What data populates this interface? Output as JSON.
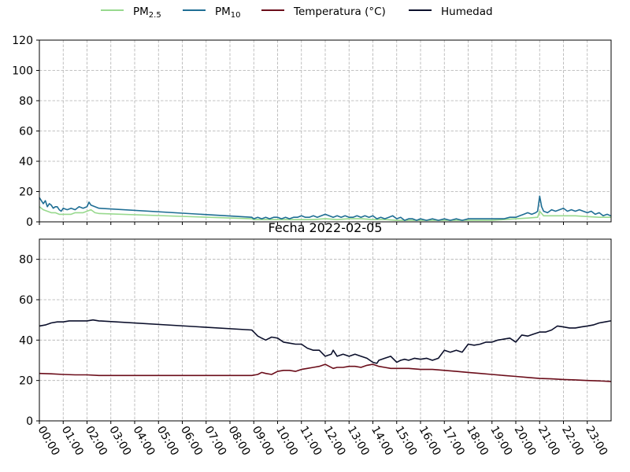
{
  "chart_data": [
    {
      "type": "line",
      "title": "",
      "xlabel": "",
      "ylabel": "",
      "ylim": [
        0,
        120
      ],
      "yticks": [
        0,
        20,
        40,
        60,
        80,
        100,
        120
      ],
      "grid": true,
      "legend": {
        "placement": "top-center",
        "entries": [
          {
            "base": "PM",
            "sub": "2.5",
            "color": "#98d98e"
          },
          {
            "base": "PM",
            "sub": "10",
            "color": "#1f6e94"
          },
          {
            "base": "Temperatura (°C)",
            "sub": "",
            "color": "#6b0d1a"
          },
          {
            "base": "Humedad",
            "sub": "",
            "color": "#0b0f2b"
          }
        ]
      },
      "series": [
        {
          "name": "PM2.5",
          "color": "#98d98e",
          "x": [
            "00:00",
            "00:10",
            "00:20",
            "00:30",
            "00:40",
            "00:50",
            "01:00",
            "01:10",
            "01:20",
            "01:30",
            "01:40",
            "01:50",
            "02:00",
            "02:10",
            "02:20",
            "02:30",
            "08:55",
            "09:00",
            "09:30",
            "10:00",
            "10:30",
            "11:00",
            "11:30",
            "12:00",
            "12:30",
            "13:00",
            "13:30",
            "14:00",
            "14:30",
            "15:00",
            "15:30",
            "16:00",
            "16:30",
            "17:00",
            "17:30",
            "18:00",
            "18:30",
            "19:00",
            "19:30",
            "20:00",
            "20:30",
            "20:55",
            "21:00",
            "21:10",
            "21:30",
            "22:00",
            "22:30",
            "23:00",
            "23:30",
            "23:59"
          ],
          "values": [
            10,
            8,
            7,
            6,
            6,
            5,
            5,
            5,
            5,
            6,
            6,
            6,
            7,
            8,
            6,
            5.5,
            2,
            1.5,
            1.5,
            1.5,
            1.5,
            1.5,
            1.5,
            2,
            1.5,
            2,
            2,
            1.5,
            1.5,
            1,
            1,
            1,
            1,
            1,
            1,
            1,
            1,
            1,
            1.5,
            2,
            2.5,
            3,
            7,
            4,
            4,
            4,
            4,
            3.5,
            3,
            3
          ]
        },
        {
          "name": "PM10",
          "color": "#1f6e94",
          "x": [
            "00:00",
            "00:05",
            "00:10",
            "00:15",
            "00:20",
            "00:25",
            "00:30",
            "00:35",
            "00:40",
            "00:45",
            "00:50",
            "00:55",
            "01:00",
            "01:10",
            "01:20",
            "01:30",
            "01:40",
            "01:50",
            "02:00",
            "02:05",
            "02:10",
            "02:20",
            "02:30",
            "08:55",
            "09:00",
            "09:10",
            "09:20",
            "09:30",
            "09:40",
            "09:50",
            "10:00",
            "10:10",
            "10:20",
            "10:30",
            "10:40",
            "10:50",
            "11:00",
            "11:10",
            "11:20",
            "11:30",
            "11:40",
            "11:50",
            "12:00",
            "12:10",
            "12:20",
            "12:30",
            "12:40",
            "12:50",
            "13:00",
            "13:10",
            "13:20",
            "13:30",
            "13:40",
            "13:50",
            "14:00",
            "14:10",
            "14:20",
            "14:30",
            "14:40",
            "14:50",
            "15:00",
            "15:10",
            "15:20",
            "15:30",
            "15:40",
            "15:50",
            "16:00",
            "16:15",
            "16:30",
            "16:45",
            "17:00",
            "17:15",
            "17:30",
            "17:45",
            "18:00",
            "18:15",
            "18:30",
            "18:45",
            "19:00",
            "19:15",
            "19:30",
            "19:45",
            "20:00",
            "20:10",
            "20:20",
            "20:30",
            "20:40",
            "20:50",
            "20:55",
            "21:00",
            "21:05",
            "21:10",
            "21:20",
            "21:30",
            "21:40",
            "21:50",
            "22:00",
            "22:10",
            "22:20",
            "22:30",
            "22:40",
            "22:50",
            "23:00",
            "23:10",
            "23:20",
            "23:30",
            "23:40",
            "23:50",
            "23:59"
          ],
          "values": [
            16,
            14,
            12,
            14,
            10,
            12,
            11,
            9,
            10,
            10,
            8,
            7,
            9,
            8,
            9,
            8,
            10,
            9,
            10,
            13,
            11,
            10,
            9,
            3,
            2,
            3,
            2,
            3,
            2,
            3,
            3,
            2,
            3,
            2,
            3,
            3,
            4,
            3,
            3,
            4,
            3,
            4,
            5,
            4,
            3,
            4,
            3,
            4,
            3,
            3,
            4,
            3,
            4,
            3,
            4,
            2,
            3,
            2,
            3,
            4,
            2,
            3,
            1,
            2,
            2,
            1,
            2,
            1,
            2,
            1,
            2,
            1,
            2,
            1,
            2,
            2,
            2,
            2,
            2,
            2,
            2,
            3,
            3,
            4,
            5,
            6,
            5,
            6,
            7,
            17,
            10,
            7,
            6,
            8,
            7,
            8,
            9,
            7,
            8,
            7,
            8,
            7,
            6,
            7,
            5,
            6,
            4,
            5,
            4
          ]
        }
      ]
    },
    {
      "type": "line",
      "title": "Fecha 2022-02-05",
      "xlabel": "",
      "ylabel": "",
      "ylim": [
        0,
        90
      ],
      "yticks": [
        0,
        20,
        40,
        60,
        80
      ],
      "grid": true,
      "xticks": [
        "00:00",
        "01:00",
        "02:00",
        "03:00",
        "04:00",
        "05:00",
        "06:00",
        "07:00",
        "08:00",
        "09:00",
        "10:00",
        "11:00",
        "12:00",
        "13:00",
        "14:00",
        "15:00",
        "16:00",
        "17:00",
        "18:00",
        "19:00",
        "20:00",
        "21:00",
        "22:00",
        "23:00"
      ],
      "series": [
        {
          "name": "Temperatura (°C)",
          "color": "#6b0d1a",
          "x": [
            "00:00",
            "00:30",
            "01:00",
            "01:30",
            "02:00",
            "02:30",
            "03:00",
            "08:55",
            "09:10",
            "09:20",
            "09:30",
            "09:45",
            "10:00",
            "10:15",
            "10:30",
            "10:45",
            "11:00",
            "11:15",
            "11:30",
            "11:45",
            "12:00",
            "12:10",
            "12:20",
            "12:30",
            "12:45",
            "13:00",
            "13:15",
            "13:30",
            "13:45",
            "14:00",
            "14:15",
            "14:30",
            "14:45",
            "15:00",
            "15:30",
            "16:00",
            "16:30",
            "17:00",
            "17:30",
            "18:00",
            "18:30",
            "19:00",
            "19:30",
            "20:00",
            "20:30",
            "21:00",
            "21:30",
            "22:00",
            "22:30",
            "23:00",
            "23:30",
            "23:59"
          ],
          "values": [
            23.5,
            23.3,
            23,
            22.8,
            22.8,
            22.5,
            22.5,
            22.5,
            23,
            24,
            23.5,
            23,
            24.5,
            25,
            25,
            24.5,
            25.5,
            26,
            26.5,
            27,
            28,
            27,
            26,
            26.5,
            26.5,
            27,
            27,
            26.5,
            27.5,
            28,
            27,
            26.5,
            26,
            26,
            26,
            25.5,
            25.5,
            25,
            24.5,
            24,
            23.5,
            23,
            22.5,
            22,
            21.5,
            21,
            20.8,
            20.5,
            20.3,
            20,
            19.8,
            19.5
          ]
        },
        {
          "name": "Humedad",
          "color": "#0b0f2b",
          "x": [
            "00:00",
            "00:15",
            "00:30",
            "00:45",
            "01:00",
            "01:15",
            "01:30",
            "01:45",
            "02:00",
            "02:15",
            "02:30",
            "08:55",
            "09:00",
            "09:10",
            "09:20",
            "09:30",
            "09:45",
            "10:00",
            "10:15",
            "10:30",
            "10:45",
            "11:00",
            "11:15",
            "11:30",
            "11:45",
            "12:00",
            "12:15",
            "12:20",
            "12:30",
            "12:45",
            "13:00",
            "13:15",
            "13:30",
            "13:45",
            "14:00",
            "14:10",
            "14:15",
            "14:30",
            "14:45",
            "15:00",
            "15:10",
            "15:20",
            "15:30",
            "15:45",
            "16:00",
            "16:15",
            "16:30",
            "16:45",
            "17:00",
            "17:15",
            "17:30",
            "17:45",
            "18:00",
            "18:15",
            "18:30",
            "18:45",
            "19:00",
            "19:15",
            "19:30",
            "19:45",
            "20:00",
            "20:15",
            "20:30",
            "20:45",
            "21:00",
            "21:15",
            "21:30",
            "21:45",
            "22:00",
            "22:15",
            "22:30",
            "22:45",
            "23:00",
            "23:15",
            "23:30",
            "23:45",
            "23:59"
          ],
          "values": [
            47,
            47.5,
            48.5,
            49,
            49,
            49.5,
            49.5,
            49.5,
            49.5,
            50,
            49.5,
            45,
            44,
            42,
            41,
            40,
            41.5,
            41,
            39,
            38.5,
            38,
            38,
            36,
            35,
            35,
            32,
            33,
            35,
            32,
            33,
            32,
            33,
            32,
            31,
            29,
            28.5,
            30,
            31,
            32,
            29,
            30,
            30.5,
            30,
            31,
            30.5,
            31,
            30,
            31,
            35,
            34,
            35,
            34,
            38,
            37.5,
            38,
            39,
            39,
            40,
            40.5,
            41,
            39,
            42.5,
            42,
            43,
            44,
            44,
            45,
            47,
            46.5,
            46,
            46,
            46.5,
            47,
            47.5,
            48.5,
            49,
            49.5
          ]
        }
      ]
    }
  ]
}
